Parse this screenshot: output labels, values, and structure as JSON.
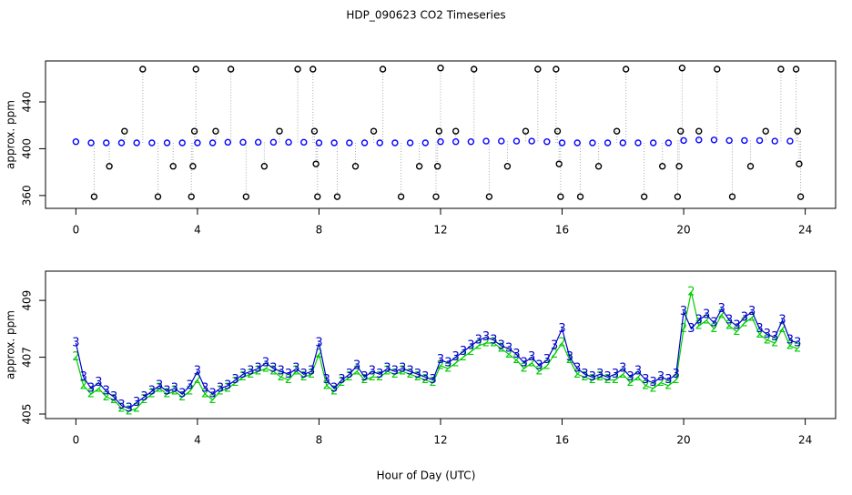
{
  "chart_data": [
    {
      "type": "scatter",
      "title": "HDP_090623  CO2 Timeseries",
      "ylabel": "approx. ppm",
      "xlim": [
        -1,
        25
      ],
      "xticks": [
        0,
        4,
        8,
        12,
        16,
        20,
        24
      ],
      "ylim": [
        349,
        475
      ],
      "yticks": [
        360,
        400,
        440
      ],
      "series": [
        {
          "color": "#0000ff",
          "x": [
            0,
            0.5,
            1,
            1.5,
            2,
            2.5,
            3,
            3.5,
            4,
            4.5,
            5,
            5.5,
            6,
            6.5,
            7,
            7.5,
            8,
            8.5,
            9,
            9.5,
            10,
            10.5,
            11,
            11.5,
            12,
            12.5,
            13,
            13.5,
            14,
            14.5,
            15,
            15.5,
            16,
            16.5,
            17,
            17.5,
            18,
            18.5,
            19,
            19.5,
            20,
            20.5,
            21,
            21.5,
            22,
            22.5,
            23,
            23.5
          ],
          "values": [
            406,
            405,
            405,
            405,
            405,
            405,
            405,
            405,
            405,
            405,
            405.5,
            405.5,
            405.5,
            405.5,
            405.5,
            405.5,
            405,
            405,
            405,
            405,
            405,
            405,
            405,
            405,
            406,
            406,
            406,
            406.5,
            406.5,
            406.5,
            406.5,
            406,
            405,
            405,
            405,
            405,
            405,
            405,
            405,
            405,
            407,
            407.5,
            407.5,
            407,
            407,
            407,
            406.5,
            406.5
          ]
        },
        {
          "color": "#000000",
          "x": [
            0.6,
            1.1,
            1.6,
            2.2,
            2.7,
            3.2,
            3.8,
            3.85,
            3.9,
            3.95,
            4.6,
            5.1,
            5.6,
            6.2,
            6.7,
            7.3,
            7.8,
            7.85,
            7.9,
            7.95,
            8.6,
            9.2,
            9.8,
            10.1,
            10.7,
            11.3,
            11.85,
            11.9,
            11.95,
            12.0,
            12.5,
            13.1,
            13.6,
            14.2,
            14.8,
            15.2,
            15.8,
            15.85,
            15.9,
            15.95,
            16.6,
            17.2,
            17.8,
            18.1,
            18.7,
            19.3,
            19.8,
            19.85,
            19.9,
            19.95,
            20.5,
            21.1,
            21.6,
            22.2,
            22.7,
            23.2,
            23.7,
            23.75,
            23.8,
            23.85
          ],
          "values": [
            359,
            385,
            415,
            468,
            359,
            385,
            359,
            385,
            415,
            468,
            415,
            468,
            359,
            385,
            415,
            468,
            468,
            415,
            387,
            359,
            359,
            385,
            415,
            468,
            359,
            385,
            359,
            385,
            415,
            469,
            415,
            468,
            359,
            385,
            415,
            468,
            468,
            415,
            387,
            359,
            359,
            385,
            415,
            468,
            359,
            385,
            359,
            385,
            415,
            469,
            415,
            468,
            359,
            385,
            415,
            468,
            468,
            415,
            387,
            359
          ]
        }
      ]
    },
    {
      "type": "line",
      "ylabel": "approx. ppm",
      "xlabel": "Hour of Day (UTC)",
      "xlim": [
        -1,
        25
      ],
      "xticks": [
        0,
        4,
        8,
        12,
        16,
        20,
        24
      ],
      "ylim": [
        404.84,
        410.03
      ],
      "yticks": [
        405,
        407,
        409
      ],
      "x": [
        0,
        0.25,
        0.5,
        0.75,
        1,
        1.25,
        1.5,
        1.75,
        2,
        2.25,
        2.5,
        2.75,
        3,
        3.25,
        3.5,
        3.75,
        4,
        4.25,
        4.5,
        4.75,
        5,
        5.25,
        5.5,
        5.75,
        6,
        6.25,
        6.5,
        6.75,
        7,
        7.25,
        7.5,
        7.75,
        8,
        8.25,
        8.5,
        8.75,
        9,
        9.25,
        9.5,
        9.75,
        10,
        10.25,
        10.5,
        10.75,
        11,
        11.25,
        11.5,
        11.75,
        12,
        12.25,
        12.5,
        12.75,
        13,
        13.25,
        13.5,
        13.75,
        14,
        14.25,
        14.5,
        14.75,
        15,
        15.25,
        15.5,
        15.75,
        16,
        16.25,
        16.5,
        16.75,
        17,
        17.25,
        17.5,
        17.75,
        18,
        18.25,
        18.5,
        18.75,
        19,
        19.25,
        19.5,
        19.75,
        20,
        20.25,
        20.5,
        20.75,
        21,
        21.25,
        21.5,
        21.75,
        22,
        22.25,
        22.5,
        22.75,
        23,
        23.25,
        23.5,
        23.75
      ],
      "series": [
        {
          "name": "2",
          "color": "#00cc00",
          "values": [
            407.0,
            406.0,
            405.7,
            405.9,
            405.6,
            405.5,
            405.2,
            405.1,
            405.2,
            405.5,
            405.7,
            405.9,
            405.7,
            405.8,
            405.6,
            405.8,
            406.2,
            405.7,
            405.5,
            405.8,
            405.9,
            406.1,
            406.3,
            406.4,
            406.5,
            406.6,
            406.5,
            406.3,
            406.2,
            406.5,
            406.3,
            406.4,
            407.1,
            406.0,
            405.8,
            406.1,
            406.3,
            406.5,
            406.2,
            406.3,
            406.3,
            406.5,
            406.4,
            406.5,
            406.4,
            406.3,
            406.2,
            406.1,
            406.7,
            406.6,
            406.8,
            407.0,
            407.2,
            407.4,
            407.5,
            407.5,
            407.3,
            407.1,
            406.9,
            406.6,
            406.8,
            406.5,
            406.7,
            407.1,
            407.5,
            406.9,
            406.4,
            406.3,
            406.2,
            406.3,
            406.2,
            406.2,
            406.4,
            406.1,
            406.3,
            406.0,
            405.9,
            406.1,
            406.0,
            406.2,
            408.0,
            409.3,
            408.1,
            408.3,
            408.0,
            408.5,
            408.1,
            407.9,
            408.2,
            408.4,
            407.8,
            407.6,
            407.5,
            408.0,
            407.4,
            407.3
          ]
        },
        {
          "name": "3",
          "color": "#0000cc",
          "values": [
            407.5,
            406.3,
            405.9,
            406.1,
            405.8,
            405.6,
            405.3,
            405.2,
            405.4,
            405.6,
            405.8,
            406.0,
            405.8,
            405.9,
            405.7,
            406.0,
            406.5,
            405.9,
            405.7,
            405.9,
            406.0,
            406.2,
            406.4,
            406.5,
            406.6,
            406.8,
            406.6,
            406.5,
            406.4,
            406.6,
            406.4,
            406.5,
            407.5,
            406.2,
            405.9,
            406.2,
            406.4,
            406.7,
            406.3,
            406.5,
            406.4,
            406.6,
            406.5,
            406.6,
            406.5,
            406.4,
            406.3,
            406.2,
            406.9,
            406.8,
            407.0,
            407.2,
            407.4,
            407.6,
            407.7,
            407.6,
            407.4,
            407.3,
            407.1,
            406.8,
            407.0,
            406.7,
            406.9,
            407.4,
            408.0,
            407.0,
            406.6,
            406.4,
            406.3,
            406.4,
            406.3,
            406.4,
            406.6,
            406.3,
            406.5,
            406.2,
            406.1,
            406.3,
            406.2,
            406.4,
            408.6,
            408.0,
            408.3,
            408.5,
            408.2,
            408.7,
            408.3,
            408.1,
            408.4,
            408.6,
            408.0,
            407.8,
            407.7,
            408.3,
            407.6,
            407.5
          ]
        }
      ]
    }
  ]
}
